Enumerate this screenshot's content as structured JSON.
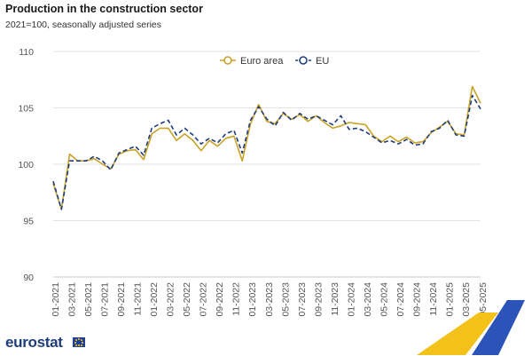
{
  "header": {
    "title": "Production in the construction sector",
    "subtitle": "2021=100, seasonally adjusted series"
  },
  "branding": {
    "logo_text": "eurostat"
  },
  "colors": {
    "euro_area": "#c9a227",
    "eu": "#1f3d7a",
    "grid": "#e3e3e3",
    "axis": "#c8c8c8"
  },
  "chart_data": {
    "type": "line",
    "title": "Production in the construction sector",
    "subtitle": "2021=100, seasonally adjusted series",
    "ylim": [
      90,
      110
    ],
    "yticks": [
      90,
      95,
      100,
      105,
      110
    ],
    "grid": true,
    "legend_position": "top-center",
    "x": [
      "01-2021",
      "02-2021",
      "03-2021",
      "04-2021",
      "05-2021",
      "06-2021",
      "07-2021",
      "08-2021",
      "09-2021",
      "10-2021",
      "11-2021",
      "12-2021",
      "01-2022",
      "02-2022",
      "03-2022",
      "04-2022",
      "05-2022",
      "06-2022",
      "07-2022",
      "08-2022",
      "09-2022",
      "10-2022",
      "11-2022",
      "12-2022",
      "01-2023",
      "02-2023",
      "03-2023",
      "04-2023",
      "05-2023",
      "06-2023",
      "07-2023",
      "08-2023",
      "09-2023",
      "10-2023",
      "11-2023",
      "12-2023",
      "01-2024",
      "02-2024",
      "03-2024",
      "04-2024",
      "05-2024",
      "06-2024",
      "07-2024",
      "08-2024",
      "09-2024",
      "10-2024",
      "11-2024",
      "12-2024",
      "01-2025",
      "02-2025",
      "03-2025",
      "04-2025",
      "05-2025"
    ],
    "xtick_labels": [
      "01-2021",
      "03-2021",
      "05-2021",
      "07-2021",
      "09-2021",
      "11-2021",
      "01-2022",
      "03-2022",
      "05-2022",
      "07-2022",
      "09-2022",
      "11-2022",
      "01-2023",
      "03-2023",
      "05-2023",
      "07-2023",
      "09-2023",
      "11-2023",
      "01-2024",
      "03-2024",
      "05-2024",
      "07-2024",
      "09-2024",
      "11-2024",
      "01-2025",
      "03-2025",
      "05-2025"
    ],
    "series": [
      {
        "name": "Euro area",
        "style": "solid",
        "values": [
          98.3,
          96.0,
          100.9,
          100.3,
          100.3,
          100.5,
          100.0,
          99.6,
          100.9,
          101.2,
          101.3,
          100.4,
          102.7,
          103.2,
          103.2,
          102.1,
          102.7,
          102.1,
          101.2,
          102.1,
          101.6,
          102.3,
          102.5,
          100.3,
          103.6,
          105.3,
          103.8,
          103.6,
          104.5,
          104.0,
          104.4,
          103.8,
          104.3,
          103.7,
          103.2,
          103.4,
          103.7,
          103.6,
          103.5,
          102.5,
          102.0,
          102.5,
          102.0,
          102.4,
          101.9,
          102.0,
          102.8,
          103.3,
          103.8,
          102.7,
          102.6,
          106.9,
          105.4
        ]
      },
      {
        "name": "EU",
        "style": "dashed",
        "values": [
          98.5,
          96.0,
          100.3,
          100.3,
          100.3,
          100.7,
          100.3,
          99.5,
          101.0,
          101.3,
          101.6,
          100.8,
          103.2,
          103.6,
          103.9,
          102.6,
          103.2,
          102.6,
          101.8,
          102.3,
          101.9,
          102.7,
          103.0,
          101.0,
          103.9,
          105.1,
          104.0,
          103.4,
          104.6,
          103.9,
          104.5,
          104.0,
          104.3,
          103.9,
          103.5,
          104.3,
          103.1,
          103.2,
          102.9,
          102.4,
          101.9,
          102.1,
          101.8,
          102.2,
          101.7,
          101.8,
          102.9,
          103.2,
          103.9,
          102.6,
          102.5,
          106.1,
          104.9
        ]
      }
    ]
  }
}
